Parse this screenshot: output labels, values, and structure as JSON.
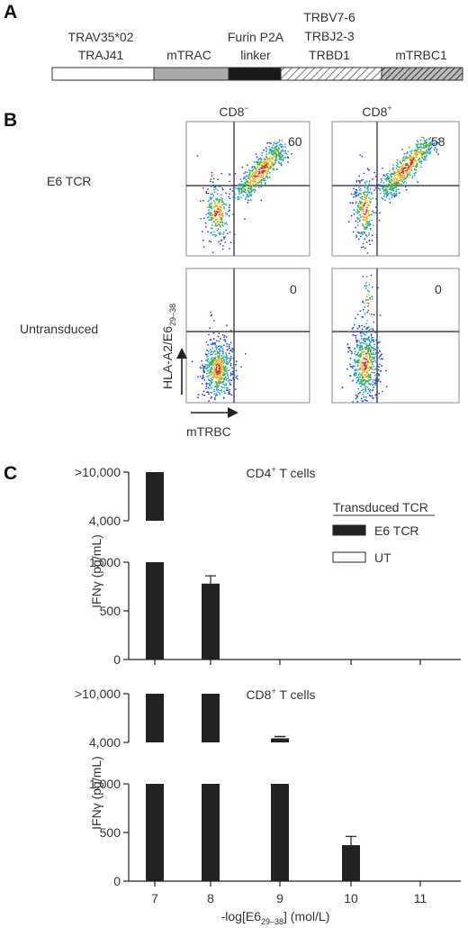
{
  "panel_a": {
    "letter": "A",
    "labels": {
      "trav_line1": "TRAV35*02",
      "trav_line2": "TRAJ41",
      "mtrac": "mTRAC",
      "furin_line1": "Furin P2A",
      "furin_line2": "linker",
      "trbv_line1": "TRBV7-6",
      "trbv_line2": "TRBJ2-3",
      "trbv_line3": "TRBD1",
      "mtrbc1": "mTRBC1"
    }
  },
  "panel_b": {
    "letter": "B",
    "col_cd8neg": "CD8",
    "col_cd8neg_sup": "−",
    "col_cd8pos": "CD8",
    "col_cd8pos_sup": "+",
    "row_e6": "E6 TCR",
    "row_ut": "Untransduced",
    "yaxis": "HLA-A2/E6",
    "yaxis_sub": "29–38",
    "xaxis": "mTRBC",
    "quad_values": [
      "60",
      "58",
      "0",
      "0"
    ]
  },
  "panel_c": {
    "letter": "C",
    "ylabel": "IFNγ (pg/mL)",
    "xlabel_pre": "-log[E6",
    "xlabel_sub": "29–38",
    "xlabel_post": "] (mol/L)",
    "legend_title": "Transduced TCR",
    "legend_e6": "E6 TCR",
    "legend_ut": "UT",
    "ytick_labels": [
      ">10,000",
      "4,000",
      "1,000",
      "500",
      "0"
    ],
    "xtick_labels": [
      "7",
      "8",
      "9",
      "10",
      "11"
    ],
    "colors": {
      "e6": "#222222",
      "ut": "#ffffff"
    }
  },
  "chart_data": [
    {
      "type": "bar",
      "title": "CD4+ T cells",
      "xlabel": "",
      "ylabel": "IFNγ (pg/mL)",
      "x": [
        7,
        8,
        9,
        10,
        11
      ],
      "series": [
        {
          "name": "E6 TCR",
          "values": [
            10000,
            780,
            0,
            0,
            0
          ],
          "errors": [
            0,
            80,
            0,
            0,
            0
          ]
        },
        {
          "name": "UT",
          "values": [
            0,
            0,
            0,
            0,
            0
          ]
        }
      ],
      "ylim": [
        0,
        10000
      ],
      "ytick_labels": [
        ">10,000",
        "4,000",
        "1,000",
        "500",
        "0"
      ],
      "broken_axis": true
    },
    {
      "type": "bar",
      "title": "CD8+ T cells",
      "xlabel": "-log[E6 29–38] (mol/L)",
      "ylabel": "IFNγ (pg/mL)",
      "x": [
        7,
        8,
        9,
        10,
        11
      ],
      "series": [
        {
          "name": "E6 TCR",
          "values": [
            10000,
            10000,
            4500,
            370,
            0
          ],
          "errors": [
            0,
            0,
            150,
            90,
            0
          ]
        },
        {
          "name": "UT",
          "values": [
            0,
            0,
            0,
            0,
            0
          ]
        }
      ],
      "ylim": [
        0,
        10000
      ],
      "ytick_labels": [
        ">10,000",
        "4,000",
        "1,000",
        "500",
        "0"
      ],
      "broken_axis": true
    }
  ]
}
